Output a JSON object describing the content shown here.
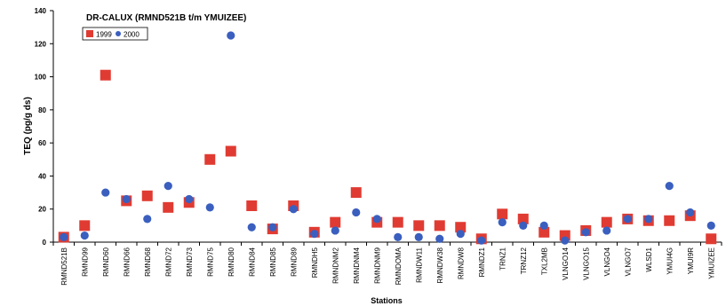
{
  "chart_data": {
    "type": "scatter",
    "title": "DR-CALUX (RMND521B t/m YMUIZEE)",
    "xlabel": "Stations",
    "ylabel": "TEQ (pg/g ds)",
    "ylim": [
      0,
      140
    ],
    "yticks": [
      0,
      20,
      40,
      60,
      80,
      100,
      120,
      140
    ],
    "grid": false,
    "legend_position": "top-left",
    "categories": [
      "RMND521B",
      "RMND99",
      "RMND60",
      "RMND66",
      "RMND68",
      "RMND72",
      "RMND73",
      "RMND75",
      "RMND80",
      "RMND84",
      "RMND85",
      "RMND89",
      "RMNDH5",
      "RMNDNM2",
      "RMNDNM4",
      "RMNDNM9",
      "RMNDOMA",
      "RMNDW11",
      "RMNDW38",
      "RMNDW8",
      "RMNDZ1",
      "TRNZ1",
      "TRNZ12",
      "TXL2MB",
      "VLNGO14",
      "VLNGO15",
      "VLNGO4",
      "VLNGO7",
      "WLSD1",
      "YMUI4G",
      "YMUI9R",
      "YMUIZEE"
    ],
    "series": [
      {
        "name": "1999",
        "marker": "square",
        "color": "#e03b32",
        "values": [
          3,
          10,
          101,
          25,
          28,
          21,
          24,
          50,
          55,
          22,
          8,
          22,
          6,
          12,
          30,
          12,
          12,
          10,
          10,
          9,
          2,
          17,
          14,
          6,
          4,
          7,
          12,
          14,
          13,
          13,
          16,
          2
        ]
      },
      {
        "name": "2000",
        "marker": "circle",
        "color": "#3a5fbf",
        "values": [
          3,
          4,
          30,
          26,
          14,
          34,
          26,
          21,
          125,
          9,
          9,
          20,
          5,
          7,
          18,
          14,
          3,
          3,
          2,
          5,
          1,
          12,
          10,
          10,
          1,
          6,
          7,
          14,
          14,
          34,
          18,
          10
        ]
      }
    ]
  }
}
